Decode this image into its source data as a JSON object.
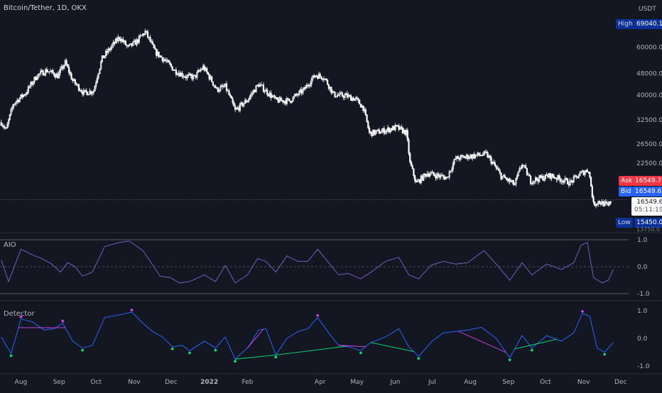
{
  "header": {
    "title": "Bitcoin/Tether, 1D, OKX",
    "currency": "USDT"
  },
  "price_badges": {
    "high_label": "High",
    "high_value": "69040.1",
    "ask_label": "Ask",
    "ask_value": "16549.7",
    "bid_label": "Bid",
    "bid_value": "16549.6",
    "last_value": "16549.6",
    "countdown": "05:11:19",
    "low_label": "Low",
    "low_value": "15450.0",
    "partial_tick": "13750.0"
  },
  "colors": {
    "background": "#131722",
    "candle": "#ffffff",
    "aio_line": "#7e57c2",
    "detector_line": "#2962ff",
    "bearish_divergence": "#e040fb",
    "bullish_divergence": "#00e676",
    "ask_badge": "#f23645",
    "bid_badge": "#2962ff",
    "axis_badge": "#0c3299"
  },
  "chart_data": [
    {
      "type": "candlestick",
      "title": "Bitcoin/Tether, 1D, OKX",
      "ylabel": "USDT",
      "y_scale": "log",
      "y_ticks": [
        "60000.0",
        "48000.0",
        "40000.0",
        "32500.0",
        "26500.0",
        "22500.0"
      ],
      "x_ticks": [
        "Aug",
        "Sep",
        "Oct",
        "Nov",
        "Dec",
        "2022",
        "Feb",
        "Apr",
        "May",
        "Jun",
        "Jul",
        "Aug",
        "Sep",
        "Oct",
        "Nov",
        "Dec"
      ],
      "high": 69040.1,
      "low": 15450.0,
      "last": 16549.6,
      "close_series": [
        [
          "2021-07-16",
          31800
        ],
        [
          "2021-07-20",
          29800
        ],
        [
          "2021-07-26",
          37200
        ],
        [
          "2021-08-05",
          40800
        ],
        [
          "2021-08-14",
          47200
        ],
        [
          "2021-08-22",
          49300
        ],
        [
          "2021-08-31",
          47100
        ],
        [
          "2021-09-06",
          52600
        ],
        [
          "2021-09-12",
          45200
        ],
        [
          "2021-09-21",
          40700
        ],
        [
          "2021-09-29",
          41500
        ],
        [
          "2021-10-06",
          54500
        ],
        [
          "2021-10-15",
          61300
        ],
        [
          "2021-10-20",
          65200
        ],
        [
          "2021-10-27",
          59700
        ],
        [
          "2021-11-03",
          62900
        ],
        [
          "2021-11-10",
          68300
        ],
        [
          "2021-11-18",
          57600
        ],
        [
          "2021-11-26",
          53600
        ],
        [
          "2021-12-04",
          49200
        ],
        [
          "2021-12-13",
          46800
        ],
        [
          "2021-12-20",
          46600
        ],
        [
          "2021-12-27",
          50700
        ],
        [
          "2022-01-07",
          41900
        ],
        [
          "2022-01-14",
          43000
        ],
        [
          "2022-01-22",
          35100
        ],
        [
          "2022-02-01",
          38400
        ],
        [
          "2022-02-10",
          43800
        ],
        [
          "2022-02-24",
          38300
        ],
        [
          "2022-03-07",
          38100
        ],
        [
          "2022-03-19",
          41900
        ],
        [
          "2022-03-28",
          47400
        ],
        [
          "2022-04-04",
          46600
        ],
        [
          "2022-04-12",
          40100
        ],
        [
          "2022-04-22",
          39800
        ],
        [
          "2022-04-30",
          38600
        ],
        [
          "2022-05-06",
          36000
        ],
        [
          "2022-05-11",
          29000
        ],
        [
          "2022-05-20",
          29400
        ],
        [
          "2022-06-02",
          30500
        ],
        [
          "2022-06-10",
          29100
        ],
        [
          "2022-06-13",
          22500
        ],
        [
          "2022-06-18",
          19000
        ],
        [
          "2022-06-27",
          20700
        ],
        [
          "2022-07-13",
          19900
        ],
        [
          "2022-07-20",
          23400
        ],
        [
          "2022-07-29",
          23800
        ],
        [
          "2022-08-14",
          24300
        ],
        [
          "2022-08-26",
          20200
        ],
        [
          "2022-09-06",
          18800
        ],
        [
          "2022-09-12",
          22400
        ],
        [
          "2022-09-19",
          19400
        ],
        [
          "2022-10-05",
          20300
        ],
        [
          "2022-10-21",
          19100
        ],
        [
          "2022-10-30",
          20700
        ],
        [
          "2022-11-05",
          21300
        ],
        [
          "2022-11-09",
          15900
        ],
        [
          "2022-11-13",
          16300
        ],
        [
          "2022-11-21",
          15700
        ],
        [
          "2022-11-24",
          16550
        ]
      ]
    },
    {
      "type": "line",
      "title": "AIO",
      "y_ticks": [
        "1.0",
        "0.0",
        "-1.0"
      ],
      "ylim": [
        -1.0,
        1.0
      ],
      "series": [
        {
          "points": [
            [
              "2021-07-16",
              0.25
            ],
            [
              "2021-07-22",
              -0.55
            ],
            [
              "2021-08-01",
              0.65
            ],
            [
              "2021-08-10",
              0.45
            ],
            [
              "2021-08-18",
              0.3
            ],
            [
              "2021-08-26",
              0.1
            ],
            [
              "2021-09-02",
              -0.2
            ],
            [
              "2021-09-08",
              0.15
            ],
            [
              "2021-09-14",
              0.0
            ],
            [
              "2021-09-20",
              -0.35
            ],
            [
              "2021-09-28",
              -0.2
            ],
            [
              "2021-10-08",
              0.75
            ],
            [
              "2021-10-20",
              0.9
            ],
            [
              "2021-10-28",
              0.95
            ],
            [
              "2021-11-08",
              0.6
            ],
            [
              "2021-11-14",
              0.2
            ],
            [
              "2021-11-22",
              -0.35
            ],
            [
              "2021-11-30",
              -0.4
            ],
            [
              "2021-12-08",
              -0.6
            ],
            [
              "2021-12-16",
              -0.55
            ],
            [
              "2021-12-28",
              -0.3
            ],
            [
              "2022-01-06",
              -0.55
            ],
            [
              "2022-01-14",
              0.05
            ],
            [
              "2022-01-22",
              -0.6
            ],
            [
              "2022-02-01",
              -0.3
            ],
            [
              "2022-02-09",
              0.3
            ],
            [
              "2022-02-16",
              0.2
            ],
            [
              "2022-02-24",
              -0.2
            ],
            [
              "2022-03-05",
              0.4
            ],
            [
              "2022-03-14",
              0.2
            ],
            [
              "2022-03-22",
              0.2
            ],
            [
              "2022-03-30",
              0.65
            ],
            [
              "2022-04-08",
              0.15
            ],
            [
              "2022-04-16",
              -0.3
            ],
            [
              "2022-04-24",
              -0.25
            ],
            [
              "2022-05-04",
              -0.45
            ],
            [
              "2022-05-14",
              -0.15
            ],
            [
              "2022-05-24",
              0.2
            ],
            [
              "2022-06-04",
              0.35
            ],
            [
              "2022-06-12",
              -0.3
            ],
            [
              "2022-06-20",
              -0.45
            ],
            [
              "2022-06-30",
              0.05
            ],
            [
              "2022-07-10",
              0.2
            ],
            [
              "2022-07-20",
              0.1
            ],
            [
              "2022-07-30",
              0.15
            ],
            [
              "2022-08-12",
              0.6
            ],
            [
              "2022-08-22",
              0.1
            ],
            [
              "2022-09-02",
              -0.5
            ],
            [
              "2022-09-12",
              0.15
            ],
            [
              "2022-09-20",
              -0.3
            ],
            [
              "2022-10-02",
              0.1
            ],
            [
              "2022-10-14",
              -0.1
            ],
            [
              "2022-10-24",
              0.15
            ],
            [
              "2022-10-30",
              0.8
            ],
            [
              "2022-11-04",
              0.9
            ],
            [
              "2022-11-09",
              -0.4
            ],
            [
              "2022-11-16",
              -0.6
            ],
            [
              "2022-11-21",
              -0.5
            ],
            [
              "2022-11-25",
              -0.1
            ]
          ]
        }
      ]
    },
    {
      "type": "line",
      "title": "Detector",
      "y_ticks": [
        "1.0",
        "0.0",
        "-1.0"
      ],
      "ylim": [
        -1.0,
        1.0
      ],
      "series": [
        {
          "points": [
            [
              "2021-07-16",
              0.05
            ],
            [
              "2021-07-24",
              -0.55
            ],
            [
              "2021-08-01",
              0.7
            ],
            [
              "2021-08-10",
              0.6
            ],
            [
              "2021-08-20",
              0.3
            ],
            [
              "2021-08-28",
              0.35
            ],
            [
              "2021-09-04",
              0.55
            ],
            [
              "2021-09-12",
              -0.1
            ],
            [
              "2021-09-20",
              -0.35
            ],
            [
              "2021-09-28",
              -0.25
            ],
            [
              "2021-10-08",
              0.75
            ],
            [
              "2021-10-20",
              0.85
            ],
            [
              "2021-10-30",
              0.95
            ],
            [
              "2021-11-08",
              0.55
            ],
            [
              "2021-11-16",
              0.25
            ],
            [
              "2021-11-24",
              0.05
            ],
            [
              "2021-12-02",
              -0.3
            ],
            [
              "2021-12-10",
              -0.25
            ],
            [
              "2021-12-16",
              -0.45
            ],
            [
              "2021-12-28",
              -0.1
            ],
            [
              "2022-01-06",
              -0.35
            ],
            [
              "2022-01-14",
              0.05
            ],
            [
              "2022-01-22",
              -0.75
            ],
            [
              "2022-02-02",
              -0.3
            ],
            [
              "2022-02-10",
              0.3
            ],
            [
              "2022-02-16",
              0.35
            ],
            [
              "2022-02-24",
              -0.6
            ],
            [
              "2022-03-05",
              0.0
            ],
            [
              "2022-03-14",
              0.25
            ],
            [
              "2022-03-22",
              0.35
            ],
            [
              "2022-03-30",
              0.75
            ],
            [
              "2022-04-08",
              0.2
            ],
            [
              "2022-04-16",
              -0.25
            ],
            [
              "2022-04-24",
              -0.3
            ],
            [
              "2022-05-04",
              -0.45
            ],
            [
              "2022-05-12",
              -0.15
            ],
            [
              "2022-05-24",
              0.05
            ],
            [
              "2022-06-04",
              0.35
            ],
            [
              "2022-06-12",
              -0.3
            ],
            [
              "2022-06-20",
              -0.65
            ],
            [
              "2022-07-01",
              -0.1
            ],
            [
              "2022-07-10",
              0.2
            ],
            [
              "2022-07-20",
              0.25
            ],
            [
              "2022-07-30",
              0.3
            ],
            [
              "2022-08-10",
              0.4
            ],
            [
              "2022-08-22",
              0.0
            ],
            [
              "2022-09-02",
              -0.7
            ],
            [
              "2022-09-12",
              0.1
            ],
            [
              "2022-09-20",
              -0.35
            ],
            [
              "2022-10-02",
              0.1
            ],
            [
              "2022-10-14",
              -0.1
            ],
            [
              "2022-10-24",
              0.2
            ],
            [
              "2022-10-31",
              0.9
            ],
            [
              "2022-11-06",
              0.8
            ],
            [
              "2022-11-12",
              -0.35
            ],
            [
              "2022-11-18",
              -0.5
            ],
            [
              "2022-11-25",
              -0.15
            ]
          ]
        }
      ],
      "divergence_lines": [
        {
          "kind": "bearish",
          "from": "2021-07-30",
          "to": "2021-09-06"
        },
        {
          "kind": "bullish",
          "from": "2022-01-22",
          "to": "2022-02-24"
        },
        {
          "kind": "bearish",
          "from": "2022-02-01",
          "to": "2022-02-14"
        },
        {
          "kind": "bullish",
          "from": "2022-02-24",
          "to": "2022-04-22"
        },
        {
          "kind": "bearish",
          "from": "2022-04-16",
          "to": "2022-05-08"
        },
        {
          "kind": "bullish",
          "from": "2022-05-12",
          "to": "2022-06-16"
        },
        {
          "kind": "bearish",
          "from": "2022-07-22",
          "to": "2022-08-30"
        },
        {
          "kind": "bullish",
          "from": "2022-09-06",
          "to": "2022-10-10"
        }
      ]
    }
  ]
}
